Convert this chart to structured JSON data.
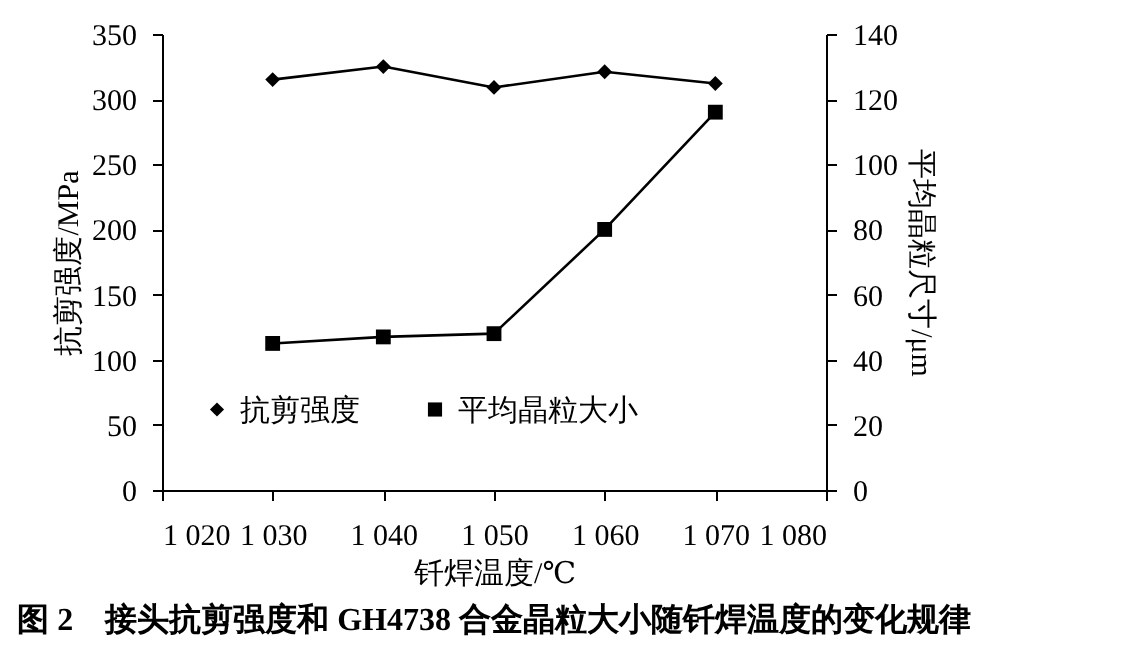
{
  "chart_data": {
    "type": "line",
    "title": "图 2　接头抗剪强度和 GH4738 合金晶粒大小随钎焊温度的变化规律",
    "xlabel": "钎焊温度/℃",
    "ylabel": "抗剪强度/MPa",
    "y2label": "平均晶粒尺寸/μm",
    "x": [
      1030,
      1040,
      1050,
      1060,
      1070
    ],
    "xlim": [
      1020,
      1080
    ],
    "xticks": [
      {
        "value": 1020,
        "label": "1 020"
      },
      {
        "value": 1030,
        "label": "1 030"
      },
      {
        "value": 1040,
        "label": "1 040"
      },
      {
        "value": 1050,
        "label": "1 050"
      },
      {
        "value": 1060,
        "label": "1 060"
      },
      {
        "value": 1070,
        "label": "1 070"
      },
      {
        "value": 1080,
        "label": "1 080"
      }
    ],
    "ylim": [
      0,
      350
    ],
    "yticks": [
      0,
      50,
      100,
      150,
      200,
      250,
      300,
      350
    ],
    "y2lim": [
      0,
      140
    ],
    "y2ticks": [
      0,
      20,
      40,
      60,
      80,
      100,
      120,
      140
    ],
    "series": [
      {
        "name": "抗剪强度",
        "color": "#000000",
        "marker": "diamond",
        "values": [
          315,
          325,
          309,
          321,
          312
        ]
      },
      {
        "name": "平均晶粒大小",
        "color": "#000000",
        "marker": "square",
        "axis": "y2",
        "values": [
          45,
          47,
          48,
          80,
          116
        ]
      }
    ],
    "legend": "bottom",
    "grid": false,
    "line_style": "solid"
  }
}
